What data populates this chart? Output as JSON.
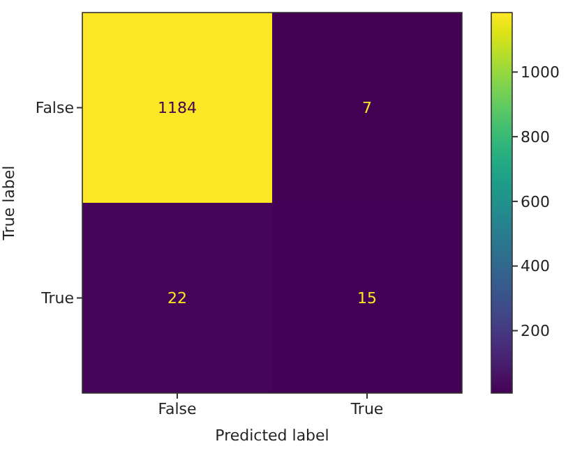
{
  "chart_data": {
    "type": "heatmap",
    "xlabel": "Predicted label",
    "ylabel": "True label",
    "categories": [
      "False",
      "True"
    ],
    "y_categories": [
      "False",
      "True"
    ],
    "cells": [
      [
        1184,
        7
      ],
      [
        22,
        15
      ]
    ],
    "data_labels": true,
    "clim": [
      7,
      1184
    ],
    "cticks": [
      200,
      400,
      600,
      800,
      1000
    ]
  }
}
